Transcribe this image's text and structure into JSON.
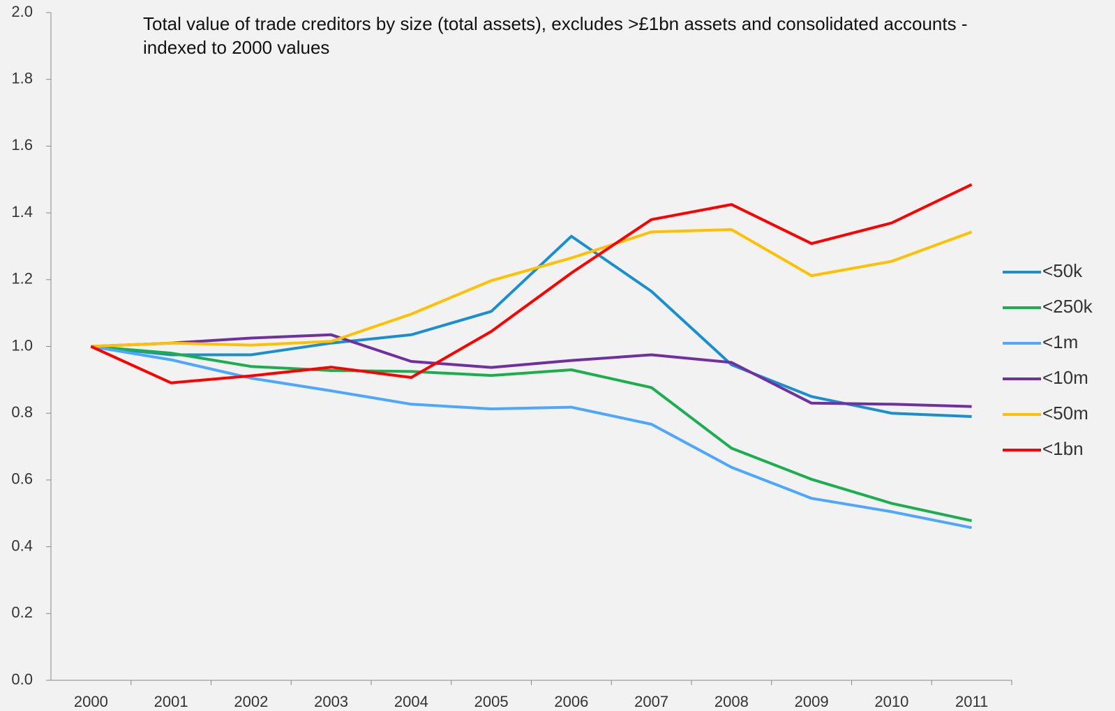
{
  "chart_data": {
    "type": "line",
    "title": "Total value of trade creditors by size (total assets), excludes >£1bn assets and consolidated accounts - indexed to 2000 values",
    "categories": [
      "2000",
      "2001",
      "2002",
      "2003",
      "2004",
      "2005",
      "2006",
      "2007",
      "2008",
      "2009",
      "2010",
      "2011"
    ],
    "series": [
      {
        "name": "<50k",
        "color": "#1a8fd0",
        "values": [
          1.0,
          0.975,
          0.975,
          1.01,
          1.035,
          1.105,
          1.33,
          1.165,
          0.945,
          0.85,
          0.8,
          0.79
        ]
      },
      {
        "name": "<250k",
        "color": "#1aae4f",
        "values": [
          1.0,
          0.98,
          0.94,
          0.928,
          0.925,
          0.913,
          0.93,
          0.877,
          0.695,
          0.602,
          0.53,
          0.478
        ]
      },
      {
        "name": "<1m",
        "color": "#4da6ff",
        "values": [
          1.0,
          0.96,
          0.905,
          0.867,
          0.827,
          0.813,
          0.818,
          0.767,
          0.638,
          0.545,
          0.505,
          0.457
        ]
      },
      {
        "name": "<10m",
        "color": "#7030a0",
        "values": [
          1.0,
          1.01,
          1.025,
          1.035,
          0.955,
          0.937,
          0.958,
          0.975,
          0.952,
          0.83,
          0.827,
          0.82
        ]
      },
      {
        "name": "<50m",
        "color": "#ffc000",
        "values": [
          1.0,
          1.01,
          1.004,
          1.015,
          1.097,
          1.197,
          1.265,
          1.343,
          1.35,
          1.212,
          1.255,
          1.343
        ]
      },
      {
        "name": "<1bn",
        "color": "#ff0000",
        "values": [
          1.0,
          0.891,
          0.912,
          0.938,
          0.907,
          1.045,
          1.22,
          1.38,
          1.425,
          1.308,
          1.37,
          1.485
        ]
      }
    ],
    "ylim": [
      0,
      2
    ],
    "yticks": [
      {
        "value": 0,
        "label": "0.0"
      },
      {
        "value": 0.2,
        "label": "0.2"
      },
      {
        "value": 0.4,
        "label": "0.4"
      },
      {
        "value": 0.6,
        "label": "0.6"
      },
      {
        "value": 0.8,
        "label": "0.8"
      },
      {
        "value": 1,
        "label": "1.0"
      },
      {
        "value": 1.2,
        "label": "1.2"
      },
      {
        "value": 1.4,
        "label": "1.4"
      },
      {
        "value": 1.6,
        "label": "1.6"
      },
      {
        "value": 1.8,
        "label": "1.8"
      },
      {
        "value": 2,
        "label": "2.0"
      }
    ],
    "grid": false,
    "legend": "right"
  }
}
